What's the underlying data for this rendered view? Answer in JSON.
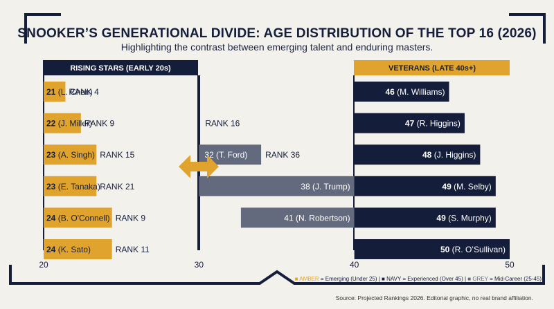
{
  "header": {
    "title": "SNOOKER’S GENERATIONAL DIVIDE: AGE DISTRIBUTION OF THE TOP 16 (2026)",
    "subtitle": "Highlighting the contrast between emerging talent and enduring masters."
  },
  "panels": {
    "rising": "RISING STARS (EARLY 20s)",
    "veterans": "VETERANS (LATE 40s+)"
  },
  "legend": {
    "amber_key": "AMBER",
    "amber_text": " = Emerging (Under 25) | ",
    "navy_key": "■ NAVY",
    "navy_text": " = Experienced (Over 45) | ",
    "grey_key": "■ GREY",
    "grey_text": " = Mid-Career (25-45)"
  },
  "source": "Source: Projected Rankings 2026. Editorial graphic, no real brand affiliation.",
  "colors": {
    "amber": "#e0a42e",
    "navy": "#141d3a",
    "grey": "#646a7e",
    "background": "#f3f1ec"
  },
  "chart_data": {
    "type": "bar",
    "orientation": "horizontal",
    "xlim": [
      20,
      50
    ],
    "xticks": [
      20,
      30,
      40,
      50
    ],
    "rows": 6,
    "series": [
      {
        "name": "Emerging (Under 25)",
        "color_name": "AMBER",
        "values": [
          {
            "player": "L. Chen",
            "age": 21,
            "rank_label": "RANK 4"
          },
          {
            "player": "J. Miller",
            "age": 22,
            "rank_label": "RANK 9"
          },
          {
            "player": "A. Singh",
            "age": 23,
            "rank_label": "RANK 15"
          },
          {
            "player": "E. Tanaka",
            "age": 23,
            "rank_label": "RANK 21"
          },
          {
            "player": "B. O'Connell",
            "age": 24,
            "rank_label": "RANK 9"
          },
          {
            "player": "K. Sato",
            "age": 24,
            "rank_label": "RANK 11"
          }
        ]
      },
      {
        "name": "Mid-Career (25-45)",
        "color_name": "GREY",
        "values": [
          {
            "player": "",
            "age": 30,
            "rank_label": "RANK 16",
            "row": 1
          },
          {
            "player": "T. Ford",
            "age": 32,
            "rank_label": "RANK 36",
            "row": 2
          },
          {
            "player": "J. Trump",
            "age": 38,
            "rank_label": "",
            "row": 3
          },
          {
            "player": "N. Robertson",
            "age": 41,
            "rank_label": "",
            "row": 4
          }
        ]
      },
      {
        "name": "Experienced (Over 45)",
        "color_name": "NAVY",
        "values": [
          {
            "player": "M. Williams",
            "age": 46
          },
          {
            "player": "R. Higgins",
            "age": 47
          },
          {
            "player": "J. Higgins",
            "age": 48
          },
          {
            "player": "M. Selby",
            "age": 49
          },
          {
            "player": "S. Murphy",
            "age": 49
          },
          {
            "player": "R. O’Sullivan",
            "age": 50
          }
        ]
      }
    ]
  }
}
